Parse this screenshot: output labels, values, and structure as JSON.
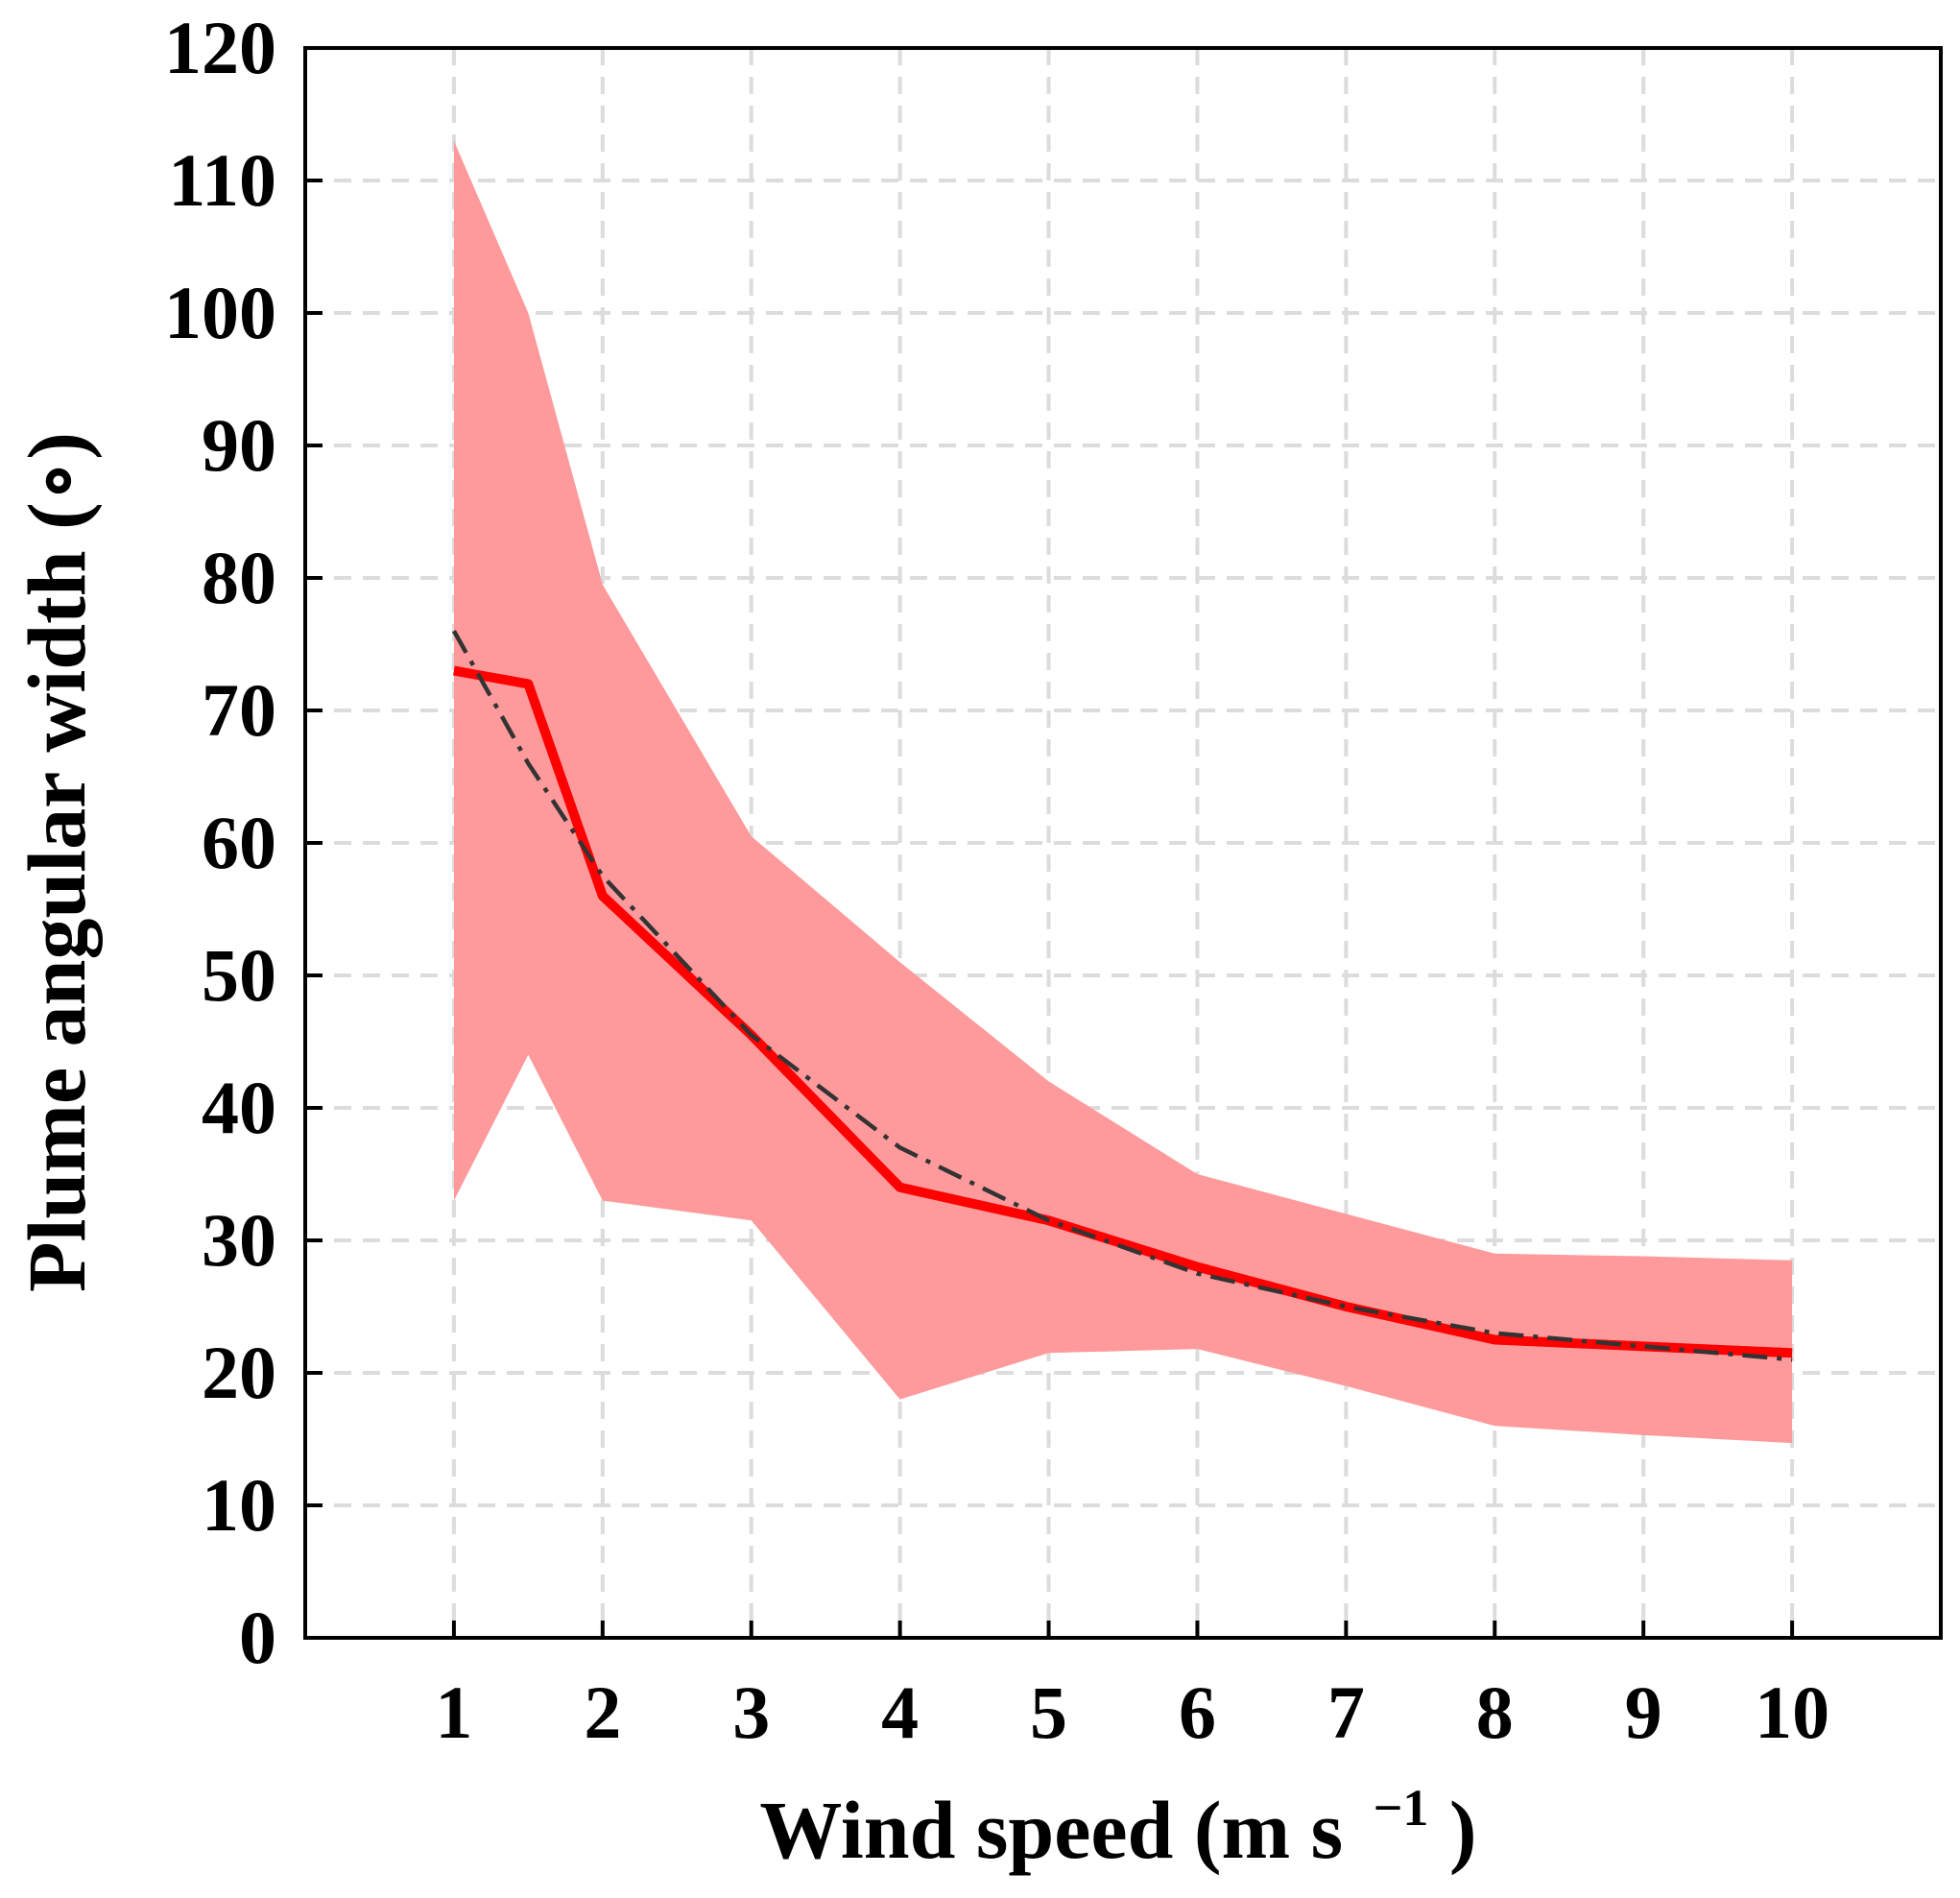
{
  "chart_data": {
    "type": "line",
    "xlabel": "Wind speed (m s",
    "xlabel_sup": "−1",
    "xlabel_close": ")",
    "ylabel": "Plume angular width (∘)",
    "xlim": [
      0,
      11
    ],
    "ylim": [
      0,
      120
    ],
    "x_ticks": [
      1,
      2,
      3,
      4,
      5,
      6,
      7,
      8,
      9,
      10
    ],
    "y_ticks": [
      0,
      10,
      20,
      30,
      40,
      50,
      60,
      70,
      80,
      90,
      100,
      110,
      120
    ],
    "grid": true,
    "legend": "none",
    "series": [
      {
        "style": "solid",
        "color": "#ff0000",
        "x": [
          1,
          1.5,
          2,
          3,
          4,
          5,
          6,
          7,
          8,
          9,
          10
        ],
        "y": [
          73,
          72,
          56,
          45.5,
          34,
          31.5,
          28,
          25,
          22.5,
          22,
          21.5
        ]
      },
      {
        "style": "dash-dot",
        "color": "#333333",
        "x": [
          1,
          1.5,
          2,
          3,
          4,
          5,
          6,
          7,
          8,
          9,
          10
        ],
        "y": [
          76,
          66,
          57.5,
          45.5,
          37,
          31.5,
          27.5,
          25,
          23,
          22,
          21
        ]
      }
    ],
    "band": {
      "color": "#ff9a9c",
      "x": [
        1,
        1.5,
        2,
        3,
        4,
        5,
        6,
        7,
        8,
        9,
        10
      ],
      "upper": [
        113,
        100,
        79.5,
        60.5,
        51,
        42,
        35,
        32,
        29,
        28.8,
        28.5
      ],
      "lower": [
        33,
        44,
        33,
        31.5,
        18,
        21.5,
        21.8,
        19,
        16,
        15.3,
        14.7
      ]
    }
  }
}
